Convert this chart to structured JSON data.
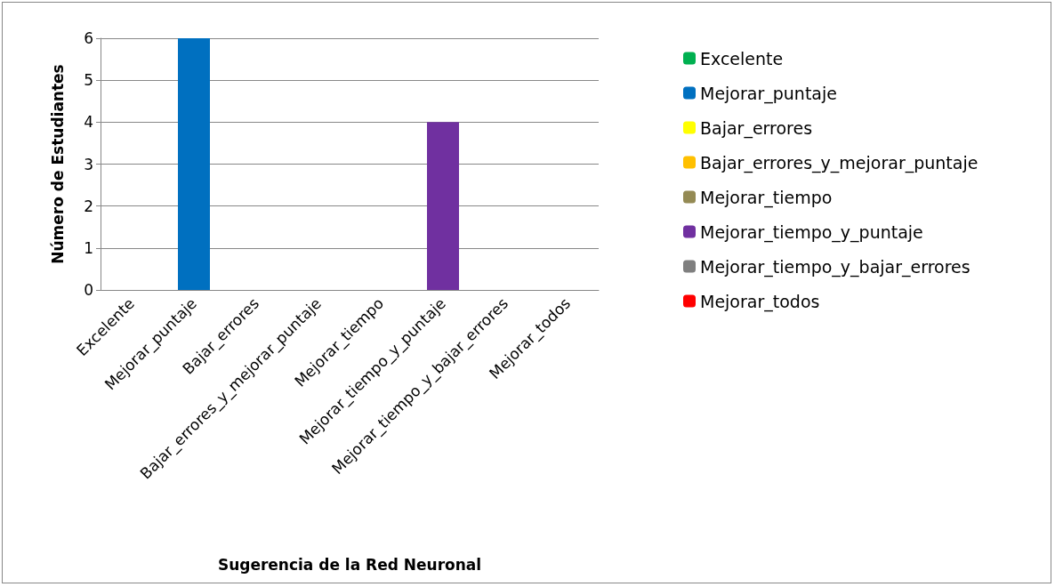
{
  "chart_data": {
    "type": "bar",
    "xlabel": "Sugerencia de la Red Neuronal",
    "ylabel": "Número de Estudiantes",
    "categories": [
      "Excelente",
      "Mejorar_puntaje",
      "Bajar_errores",
      "Bajar_errores_y_mejorar_puntaje",
      "Mejorar_tiempo",
      "Mejorar_tiempo_y_puntaje",
      "Mejorar_tiempo_y_bajar_errores",
      "Mejorar_todos"
    ],
    "series": [
      {
        "name": "Excelente",
        "color": "#00b050",
        "values": [
          0,
          null,
          null,
          null,
          null,
          null,
          null,
          null
        ]
      },
      {
        "name": "Mejorar_puntaje",
        "color": "#0070c0",
        "values": [
          null,
          6,
          null,
          null,
          null,
          null,
          null,
          null
        ]
      },
      {
        "name": "Bajar_errores",
        "color": "#ffff00",
        "values": [
          null,
          null,
          0,
          null,
          null,
          null,
          null,
          null
        ]
      },
      {
        "name": "Bajar_errores_y_mejorar_puntaje",
        "color": "#ffc000",
        "values": [
          null,
          null,
          null,
          0,
          null,
          null,
          null,
          null
        ]
      },
      {
        "name": "Mejorar_tiempo",
        "color": "#948a54",
        "values": [
          null,
          null,
          null,
          null,
          0,
          null,
          null,
          null
        ]
      },
      {
        "name": "Mejorar_tiempo_y_puntaje",
        "color": "#7030a0",
        "values": [
          null,
          null,
          null,
          null,
          null,
          4,
          null,
          null
        ]
      },
      {
        "name": "Mejorar_tiempo_y_bajar_errores",
        "color": "#7f7f7f",
        "values": [
          null,
          null,
          null,
          null,
          null,
          null,
          0,
          null
        ]
      },
      {
        "name": "Mejorar_todos",
        "color": "#ff0000",
        "values": [
          null,
          null,
          null,
          null,
          null,
          null,
          null,
          0
        ]
      }
    ],
    "ylim": [
      0,
      6
    ],
    "yticks": [
      0,
      1,
      2,
      3,
      4,
      5,
      6
    ],
    "grid": "y",
    "legend": "right"
  }
}
